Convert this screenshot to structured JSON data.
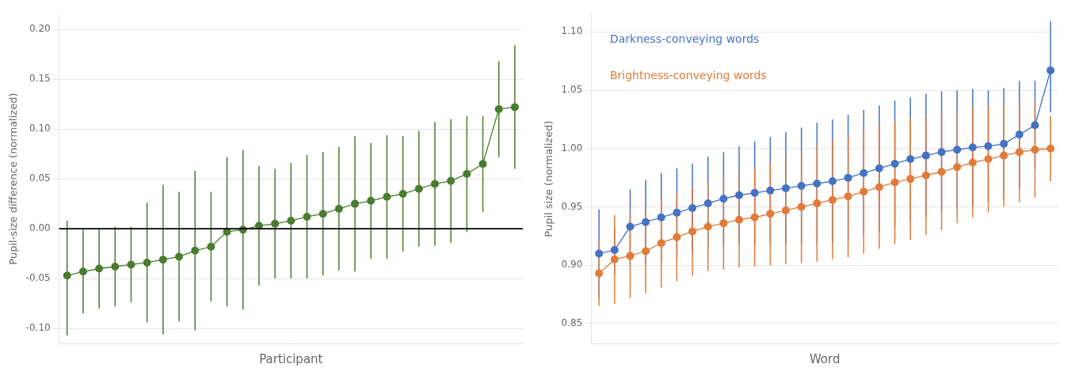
{
  "chart_data": [
    {
      "type": "line",
      "xlabel": "Participant",
      "ylabel": "Pupil-size difference (normalized)",
      "categories": [
        null,
        null,
        null,
        null,
        null,
        null,
        null,
        null,
        null,
        null,
        null,
        null,
        null,
        null,
        null,
        null,
        null,
        null,
        null,
        null,
        null,
        null,
        null,
        null,
        null,
        null,
        null,
        null,
        null
      ],
      "series": [
        {
          "color": "#4a7c2f",
          "values": [
            -0.047,
            -0.043,
            -0.04,
            -0.038,
            -0.036,
            -0.034,
            -0.031,
            -0.028,
            -0.022,
            -0.018,
            -0.003,
            -0.001,
            0.003,
            0.005,
            0.008,
            0.012,
            0.015,
            0.02,
            0.025,
            0.028,
            0.032,
            0.035,
            0.04,
            0.045,
            0.048,
            0.055,
            0.065,
            0.12,
            0.122
          ],
          "errors_low": [
            0.06,
            0.042,
            0.04,
            0.04,
            0.038,
            0.06,
            0.075,
            0.065,
            0.08,
            0.055,
            0.075,
            0.08,
            0.06,
            0.055,
            0.058,
            0.062,
            0.062,
            0.062,
            0.068,
            0.058,
            0.062,
            0.058,
            0.058,
            0.062,
            0.062,
            0.058,
            0.048,
            0.048,
            0.062
          ],
          "errors_high": [
            0.055,
            0.042,
            0.04,
            0.04,
            0.038,
            0.06,
            0.075,
            0.065,
            0.08,
            0.055,
            0.075,
            0.08,
            0.06,
            0.055,
            0.058,
            0.062,
            0.062,
            0.062,
            0.068,
            0.058,
            0.062,
            0.058,
            0.058,
            0.062,
            0.062,
            0.058,
            0.048,
            0.048,
            0.062
          ]
        }
      ],
      "reference_line": 0,
      "ylim": [
        -0.115,
        0.215
      ],
      "yticks": [
        {
          "value": -0.1,
          "label": "-0.10"
        },
        -0.05,
        {
          "value": 0.0,
          "label": "0.00"
        },
        0.05,
        {
          "value": 0.1,
          "label": "0.10"
        },
        0.15,
        {
          "value": 0.2,
          "label": "0.20"
        }
      ],
      "grid": true,
      "tick_labels": "y"
    },
    {
      "type": "line",
      "xlabel": "Word",
      "ylabel": "Pupil size (normalized)",
      "categories": [
        null,
        null,
        null,
        null,
        null,
        null,
        null,
        null,
        null,
        null,
        null,
        null,
        null,
        null,
        null,
        null,
        null,
        null,
        null,
        null,
        null,
        null,
        null,
        null,
        null,
        null,
        null,
        null,
        null,
        null
      ],
      "series": [
        {
          "name": "Darkness-conveying words",
          "color": "#4472c4",
          "values": [
            0.91,
            0.913,
            0.933,
            0.937,
            0.941,
            0.945,
            0.949,
            0.953,
            0.957,
            0.96,
            0.962,
            0.964,
            0.966,
            0.968,
            0.97,
            0.972,
            0.975,
            0.979,
            0.983,
            0.987,
            0.991,
            0.994,
            0.997,
            0.999,
            1.001,
            1.002,
            1.004,
            1.012,
            1.02,
            1.067
          ],
          "errors_low": [
            0.038,
            0.02,
            0.032,
            0.036,
            0.038,
            0.038,
            0.038,
            0.04,
            0.04,
            0.042,
            0.044,
            0.046,
            0.048,
            0.05,
            0.052,
            0.053,
            0.054,
            0.054,
            0.054,
            0.054,
            0.053,
            0.053,
            0.052,
            0.051,
            0.05,
            0.048,
            0.048,
            0.046,
            0.038,
            0.036
          ],
          "errors_high": [
            0.038,
            0.02,
            0.032,
            0.036,
            0.038,
            0.038,
            0.038,
            0.04,
            0.04,
            0.042,
            0.044,
            0.046,
            0.048,
            0.05,
            0.052,
            0.053,
            0.054,
            0.054,
            0.054,
            0.054,
            0.053,
            0.053,
            0.052,
            0.051,
            0.05,
            0.048,
            0.048,
            0.046,
            0.038,
            0.042
          ]
        },
        {
          "name": "Brightness-conveying words",
          "color": "#e07b39",
          "values": [
            0.893,
            0.905,
            0.908,
            0.912,
            0.919,
            0.924,
            0.929,
            0.933,
            0.936,
            0.939,
            0.941,
            0.944,
            0.947,
            0.95,
            0.953,
            0.956,
            0.959,
            0.963,
            0.967,
            0.971,
            0.974,
            0.977,
            0.98,
            0.984,
            0.988,
            0.991,
            0.994,
            0.997,
            0.999,
            1.0
          ],
          "errors_low": [
            0.028,
            0.038,
            0.036,
            0.036,
            0.038,
            0.038,
            0.038,
            0.038,
            0.04,
            0.041,
            0.042,
            0.044,
            0.046,
            0.048,
            0.05,
            0.051,
            0.052,
            0.053,
            0.053,
            0.053,
            0.052,
            0.051,
            0.05,
            0.048,
            0.047,
            0.046,
            0.044,
            0.043,
            0.041,
            0.028
          ],
          "errors_high": [
            0.028,
            0.038,
            0.036,
            0.036,
            0.038,
            0.038,
            0.038,
            0.038,
            0.04,
            0.041,
            0.042,
            0.044,
            0.046,
            0.048,
            0.05,
            0.051,
            0.052,
            0.053,
            0.053,
            0.053,
            0.052,
            0.051,
            0.05,
            0.048,
            0.047,
            0.046,
            0.044,
            0.043,
            0.041,
            0.028
          ]
        }
      ],
      "ylim": [
        0.833,
        1.115
      ],
      "yticks": [
        0.85,
        {
          "value": 0.9,
          "label": "0.90"
        },
        0.95,
        {
          "value": 1.0,
          "label": "1.00"
        },
        1.05,
        {
          "value": 1.1,
          "label": "1.10"
        }
      ],
      "grid": true,
      "legend": "upper left",
      "tick_labels": "y"
    }
  ]
}
